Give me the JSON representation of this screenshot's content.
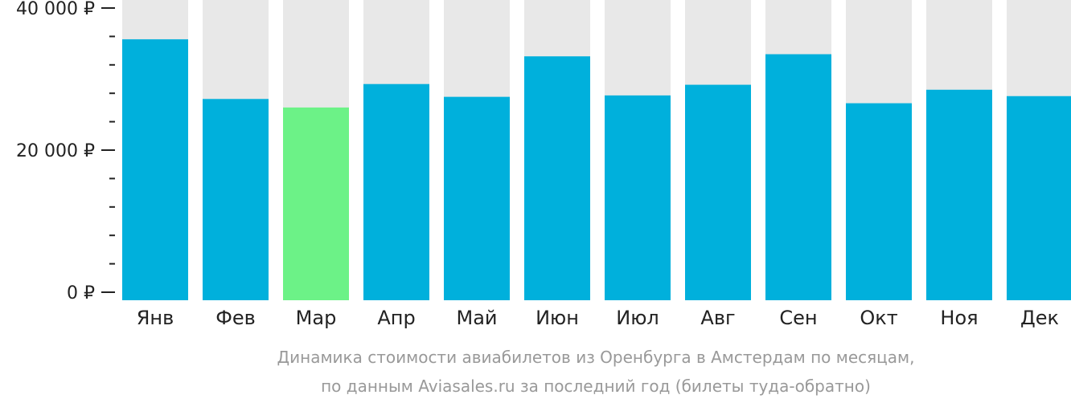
{
  "chart_data": {
    "type": "bar",
    "categories": [
      "Янв",
      "Фев",
      "Мар",
      "Апр",
      "Май",
      "Июн",
      "Июл",
      "Авг",
      "Сен",
      "Окт",
      "Ноя",
      "Дек"
    ],
    "values": [
      35600,
      27200,
      26000,
      29300,
      27500,
      33200,
      27700,
      29200,
      33500,
      26600,
      28500,
      27600
    ],
    "highlight_index": 2,
    "ylim": [
      0,
      40000
    ],
    "y_ticks": [
      {
        "value": 40000,
        "label": "40 000 ₽"
      },
      {
        "value": 20000,
        "label": "20 000 ₽"
      },
      {
        "value": 0,
        "label": "0 ₽"
      }
    ],
    "minor_tick_step": 4000,
    "grid": false,
    "legend": "none",
    "caption_lines": [
      "Динамика стоимости авиабилетов из Оренбурга в Амстердам по месяцам,",
      "по данным Aviasales.ru за последний год (билеты туда-обратно)"
    ],
    "colors": {
      "bar": "#00b0dc",
      "highlight": "#6cf287",
      "track": "#e8e8e8",
      "axis": "#222222",
      "text": "#222222",
      "caption": "#999999"
    }
  }
}
